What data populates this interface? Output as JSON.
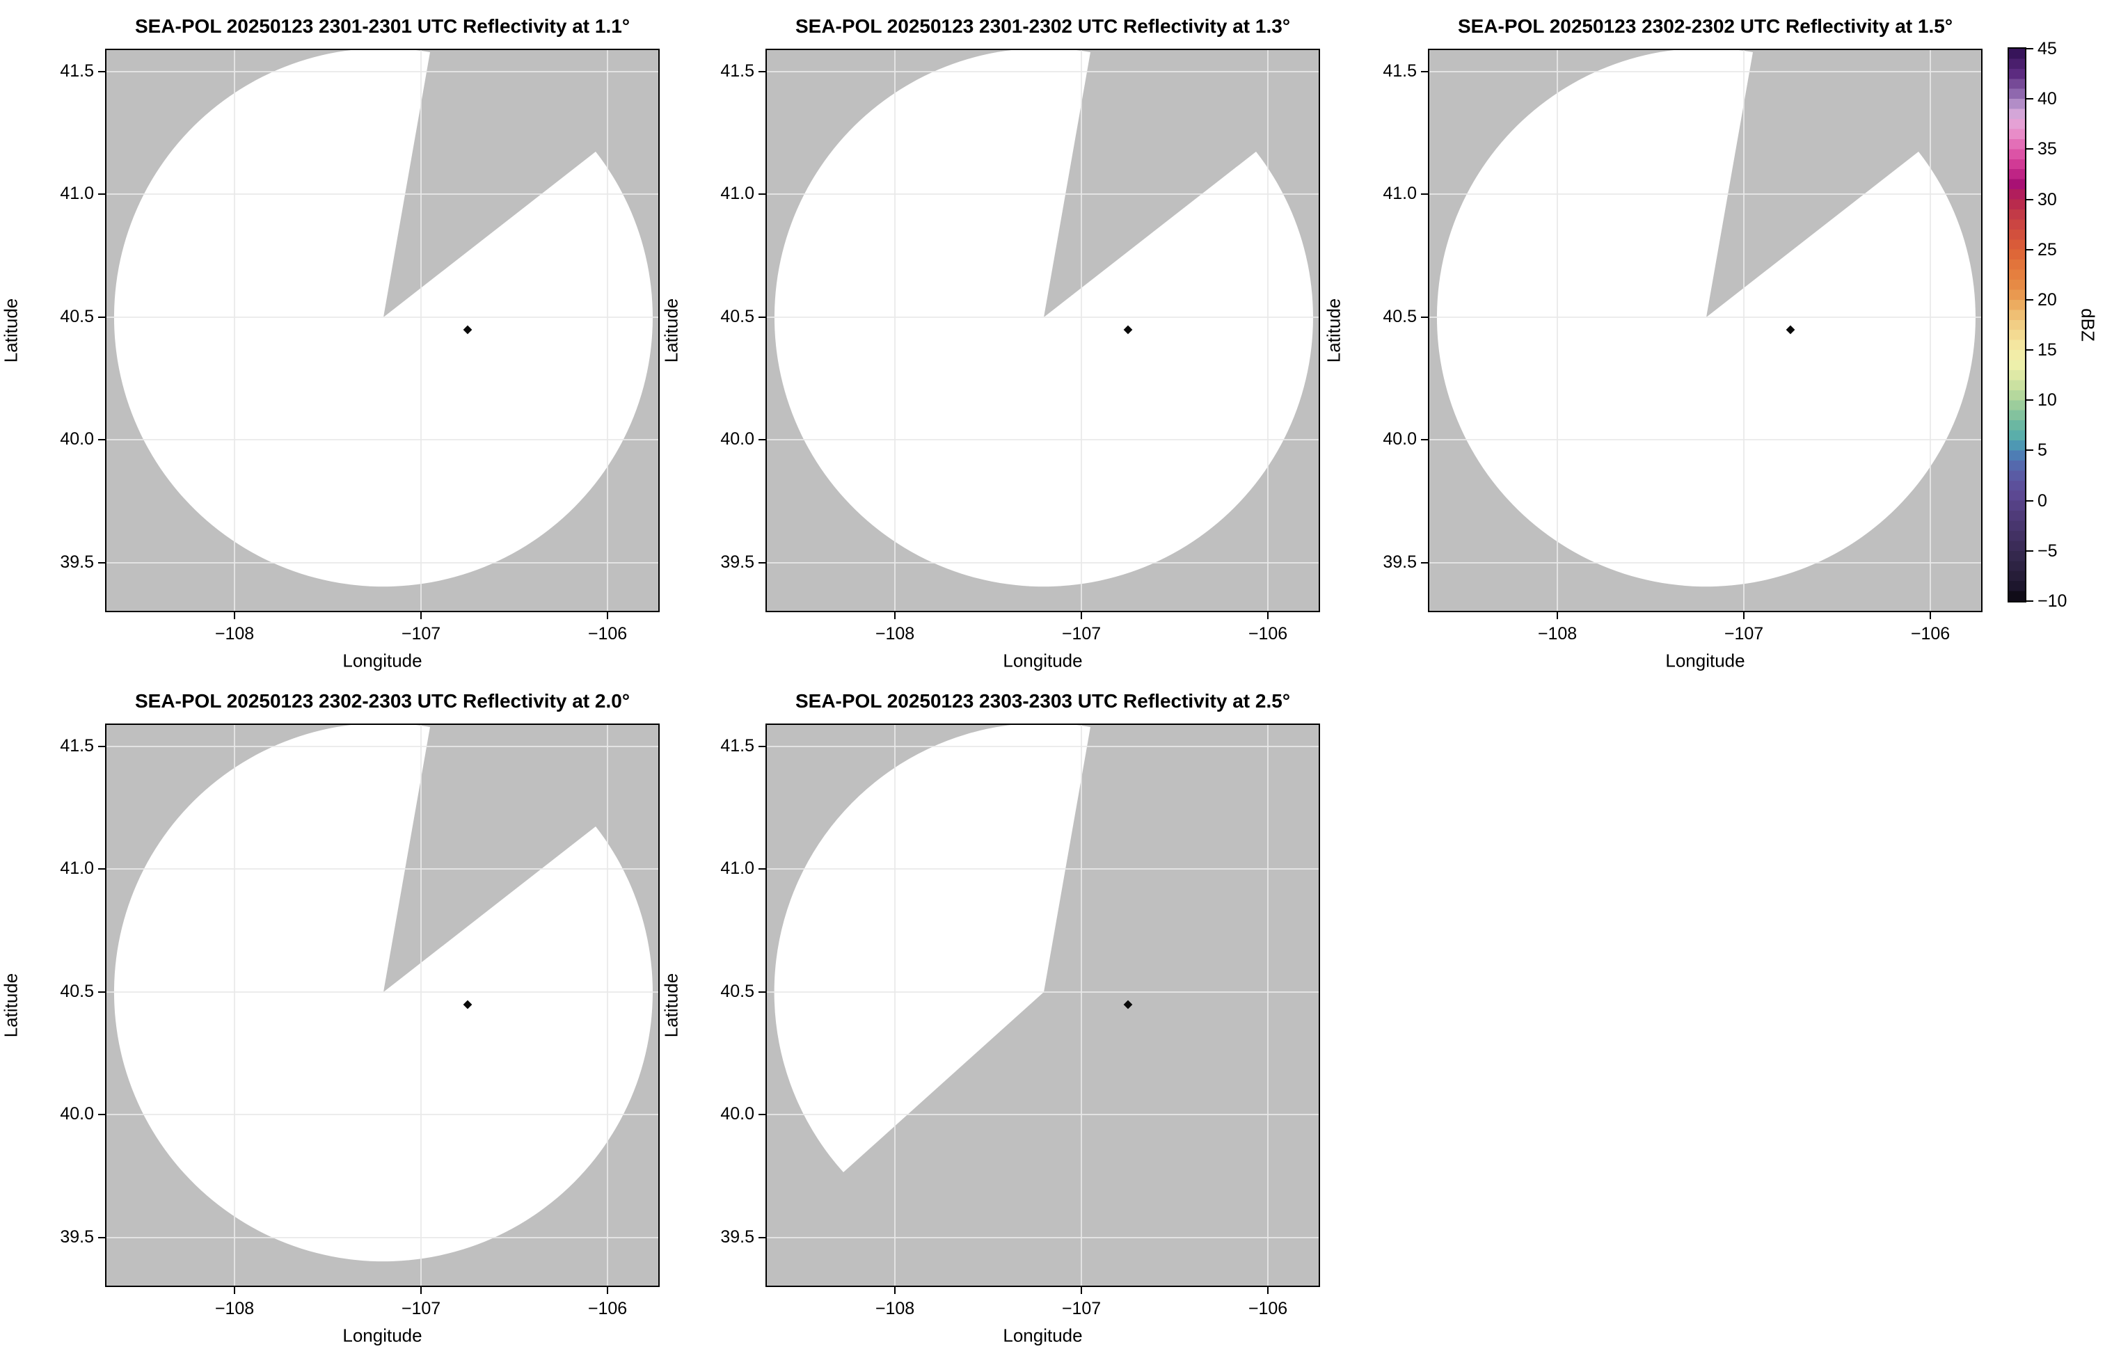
{
  "chart_data": {
    "type": "heatmap",
    "description": "Five-panel SEA-POL radar PPI reflectivity maps on lon/lat axes. Scanned coverage area is blank (no echoes above colorbar minimum); unscanned area is gray. A small black diamond marks a site east of the radar center.",
    "panels": [
      {
        "title": "SEA-POL 20250123 2301-2301 UTC Reflectivity at 1.1°",
        "radar": "SEA-POL",
        "date": "20250123",
        "time_utc": "2301-2301",
        "elevation_deg": 1.1,
        "coverage": "full circle with missing sector azimuth ~10°–52°"
      },
      {
        "title": "SEA-POL 20250123 2301-2302 UTC Reflectivity at 1.3°",
        "radar": "SEA-POL",
        "date": "20250123",
        "time_utc": "2301-2302",
        "elevation_deg": 1.3,
        "coverage": "full circle with missing sector azimuth ~10°–52°"
      },
      {
        "title": "SEA-POL 20250123 2302-2302 UTC Reflectivity at 1.5°",
        "radar": "SEA-POL",
        "date": "20250123",
        "time_utc": "2302-2302",
        "elevation_deg": 1.5,
        "coverage": "full circle with missing sector azimuth ~10°–52°"
      },
      {
        "title": "SEA-POL 20250123 2302-2303 UTC Reflectivity at 2.0°",
        "radar": "SEA-POL",
        "date": "20250123",
        "time_utc": "2302-2303",
        "elevation_deg": 2.0,
        "coverage": "full circle with missing sector azimuth ~10°–52°"
      },
      {
        "title": "SEA-POL 20250123 2303-2303 UTC Reflectivity at 2.5°",
        "radar": "SEA-POL",
        "date": "20250123",
        "time_utc": "2303-2303",
        "elevation_deg": 2.5,
        "coverage": "partial sector only, azimuth ~228° counterclockwise to ~10°"
      }
    ],
    "xlabel": "Longitude",
    "ylabel": "Latitude",
    "xticks": [
      -108,
      -107,
      -106
    ],
    "yticks": [
      41.5,
      41.0,
      40.5,
      40.0,
      39.5
    ],
    "xtick_labels": [
      "−108",
      "−107",
      "−106"
    ],
    "ytick_labels": [
      "41.5",
      "41.0",
      "40.5",
      "40.0",
      "39.5"
    ],
    "xlim": [
      -108.8,
      -105.8
    ],
    "ylim": [
      39.3,
      41.6
    ],
    "grid": true,
    "radar_center_lonlat": [
      -107.2,
      40.5
    ],
    "coverage_radius_deg_lat": 1.08,
    "site_marker_lonlat": [
      -106.75,
      40.45
    ],
    "echoes": "none visible",
    "colorbar": {
      "label": "dBZ",
      "vmin": -10,
      "vmax": 45,
      "ticks": [
        45,
        40,
        35,
        30,
        25,
        20,
        15,
        10,
        5,
        0,
        -5,
        -10
      ],
      "tick_labels": [
        "45",
        "40",
        "35",
        "30",
        "25",
        "20",
        "15",
        "10",
        "5",
        "0",
        "−5",
        "−10"
      ],
      "band_step_dbz": 1,
      "stops": [
        {
          "v": 45,
          "c": "#2e0e50"
        },
        {
          "v": 42.5,
          "c": "#5c2b80"
        },
        {
          "v": 40.5,
          "c": "#8f68ae"
        },
        {
          "v": 39,
          "c": "#c49fd3"
        },
        {
          "v": 38,
          "c": "#e3acdc"
        },
        {
          "v": 36.5,
          "c": "#e88cc8"
        },
        {
          "v": 35,
          "c": "#e160ae"
        },
        {
          "v": 33,
          "c": "#cb2d8d"
        },
        {
          "v": 31.5,
          "c": "#a81174"
        },
        {
          "v": 30,
          "c": "#b52450"
        },
        {
          "v": 28.5,
          "c": "#c23a47"
        },
        {
          "v": 27,
          "c": "#cf4a3f"
        },
        {
          "v": 25,
          "c": "#dc6137"
        },
        {
          "v": 23,
          "c": "#e47a3c"
        },
        {
          "v": 21,
          "c": "#e78f48"
        },
        {
          "v": 19.5,
          "c": "#ecac60"
        },
        {
          "v": 18,
          "c": "#f0c87e"
        },
        {
          "v": 16.5,
          "c": "#f3da92"
        },
        {
          "v": 15,
          "c": "#f4eca7"
        },
        {
          "v": 13.5,
          "c": "#edf0ab"
        },
        {
          "v": 12,
          "c": "#d6e6a3"
        },
        {
          "v": 10.5,
          "c": "#b5d89d"
        },
        {
          "v": 9,
          "c": "#8fc79c"
        },
        {
          "v": 7.5,
          "c": "#6bb7a2"
        },
        {
          "v": 6,
          "c": "#51a9ae"
        },
        {
          "v": 5,
          "c": "#4a87b8"
        },
        {
          "v": 3.5,
          "c": "#5569ad"
        },
        {
          "v": 2,
          "c": "#5c54a0"
        },
        {
          "v": 0.5,
          "c": "#5c4892"
        },
        {
          "v": -1,
          "c": "#523e7e"
        },
        {
          "v": -3,
          "c": "#453369"
        },
        {
          "v": -5,
          "c": "#372a52"
        },
        {
          "v": -7,
          "c": "#2a203e"
        },
        {
          "v": -9,
          "c": "#191327"
        },
        {
          "v": -10,
          "c": "#060409"
        }
      ]
    }
  },
  "colors": {
    "figure_bg": "#ffffff",
    "panel_bg": "#bfbfbf",
    "scanned_area": "#ffffff",
    "gridline": "#e9e9e9",
    "spine": "#000000",
    "marker": "#0a0a0a",
    "text": "#000000"
  }
}
